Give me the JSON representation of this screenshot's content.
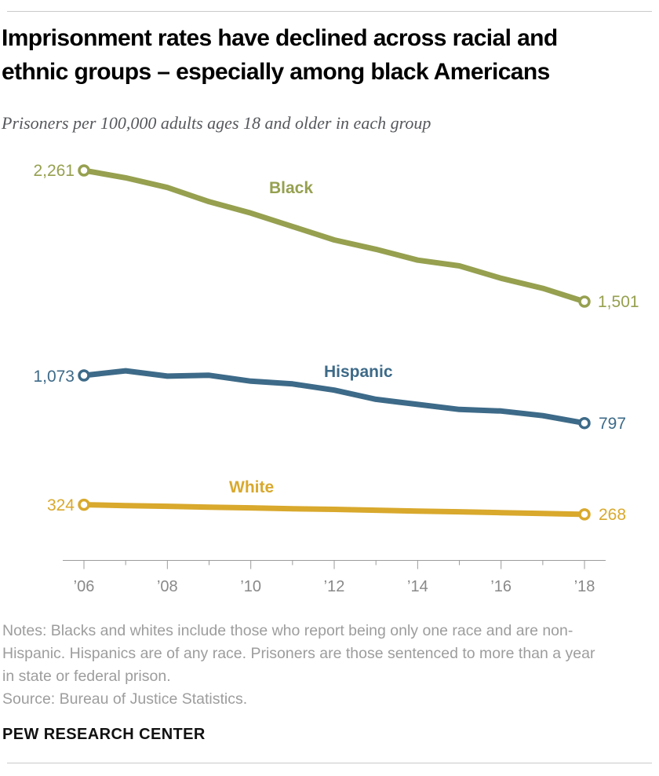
{
  "colors": {
    "black_series": "#96a04f",
    "hispanic_series": "#3d6a88",
    "white_series": "#d9a92d",
    "title_text": "#010101",
    "subtitle_text": "#56585c",
    "notes_text": "#9d9d9d",
    "axis": "#9b9b9b",
    "tick_label": "#898989",
    "rule": "#c9c9c9"
  },
  "header": {
    "title_line1": "Imprisonment rates have declined across racial and",
    "title_line2": "ethnic groups – especially among black Americans",
    "subtitle": "Prisoners per 100,000 adults ages 18 and older in each group"
  },
  "chart_data": {
    "type": "line",
    "x": [
      2006,
      2007,
      2008,
      2009,
      2010,
      2011,
      2012,
      2013,
      2014,
      2015,
      2016,
      2017,
      2018
    ],
    "x_tick_labels": [
      "’06",
      "’08",
      "’10",
      "’12",
      "’14",
      "’16",
      "’18"
    ],
    "ylim": [
      0,
      2450
    ],
    "grid": false,
    "legend": "inline-labels",
    "series": [
      {
        "name": "Black",
        "color": "#96a04f",
        "values": [
          2261,
          2218,
          2162,
          2080,
          2014,
          1936,
          1858,
          1804,
          1741,
          1708,
          1636,
          1578,
          1501
        ],
        "start_label": "2,261",
        "end_label": "1,501"
      },
      {
        "name": "Hispanic",
        "color": "#3d6a88",
        "values": [
          1073,
          1100,
          1069,
          1074,
          1040,
          1024,
          988,
          935,
          905,
          876,
          867,
          840,
          797
        ],
        "start_label": "1,073",
        "end_label": "797"
      },
      {
        "name": "White",
        "color": "#d9a92d",
        "values": [
          324,
          319,
          315,
          310,
          306,
          301,
          297,
          292,
          287,
          283,
          278,
          273,
          268
        ],
        "start_label": "324",
        "end_label": "268"
      }
    ]
  },
  "footer": {
    "notes": "Notes: Blacks and whites include those who report being only one race and are non-Hispanic. Hispanics are of any race. Prisoners are those sentenced to more than a year in state or federal prison.",
    "source": "Source: Bureau of Justice Statistics.",
    "brand": "PEW RESEARCH CENTER"
  }
}
